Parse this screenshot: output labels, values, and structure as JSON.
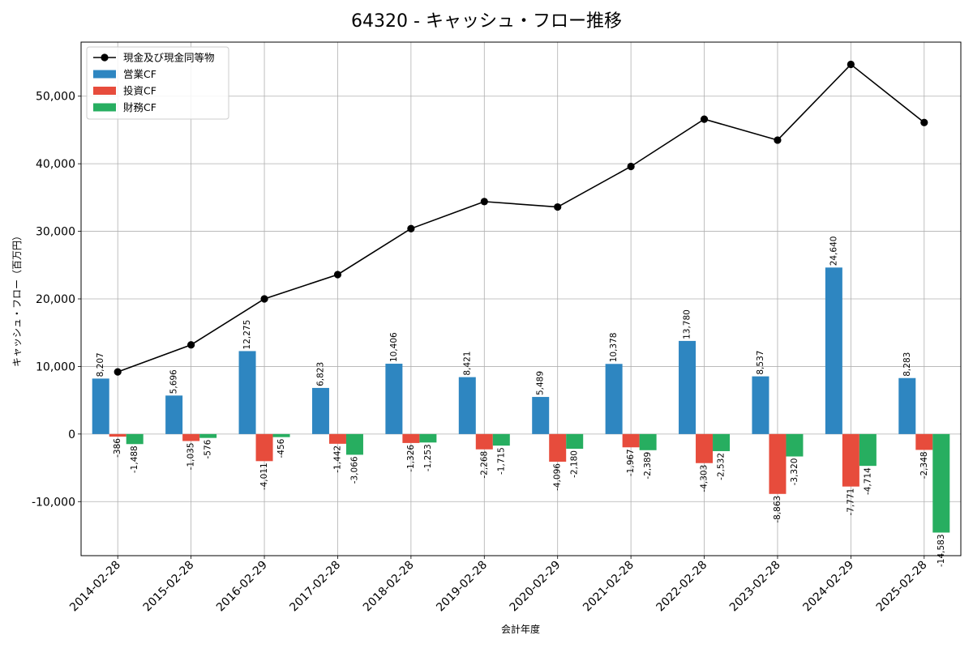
{
  "chart_data": {
    "type": "bar",
    "title": "64320 - キャッシュ・フロー推移",
    "xlabel": "会計年度",
    "ylabel": "キャッシュ・フロー（百万円）",
    "categories": [
      "2014-02-28",
      "2015-02-28",
      "2016-02-29",
      "2017-02-28",
      "2018-02-28",
      "2019-02-28",
      "2020-02-29",
      "2021-02-28",
      "2022-02-28",
      "2023-02-28",
      "2024-02-29",
      "2025-02-28"
    ],
    "ylim": [
      -18000,
      58000
    ],
    "yticks": [
      -10000,
      0,
      10000,
      20000,
      30000,
      40000,
      50000
    ],
    "ytick_labels": [
      "-10,000",
      "0",
      "10,000",
      "20,000",
      "30,000",
      "40,000",
      "50,000"
    ],
    "grid": true,
    "legend_position": "top-left",
    "series": [
      {
        "name": "現金及び現金同等物",
        "type": "line",
        "color": "#000000",
        "values": [
          9200,
          13200,
          20000,
          23600,
          30400,
          34400,
          33600,
          39600,
          46600,
          43500,
          54700,
          46100
        ]
      },
      {
        "name": "営業CF",
        "type": "bar",
        "color": "#2e86c1",
        "values": [
          8207,
          5696,
          12275,
          6823,
          10406,
          8421,
          5489,
          10378,
          13780,
          8537,
          24640,
          8283
        ],
        "labels": [
          "8,207",
          "5,696",
          "12,275",
          "6,823",
          "10,406",
          "8,421",
          "5,489",
          "10,378",
          "13,780",
          "8,537",
          "24,640",
          "8,283"
        ]
      },
      {
        "name": "投資CF",
        "type": "bar",
        "color": "#e74c3c",
        "values": [
          -386,
          -1035,
          -4011,
          -1442,
          -1326,
          -2268,
          -4096,
          -1967,
          -4303,
          -8863,
          -7771,
          -2348
        ],
        "labels": [
          "-386",
          "-1,035",
          "-4,011",
          "-1,442",
          "-1,326",
          "-2,268",
          "-4,096",
          "-1,967",
          "-4,303",
          "-8,863",
          "-7,771",
          "-2,348"
        ]
      },
      {
        "name": "財務CF",
        "type": "bar",
        "color": "#27ae60",
        "values": [
          -1488,
          -576,
          -456,
          -3066,
          -1253,
          -1715,
          -2180,
          -2389,
          -2532,
          -3320,
          -4714,
          -14583
        ],
        "labels": [
          "-1,488",
          "-576",
          "-456",
          "-3,066",
          "-1,253",
          "-1,715",
          "-2,180",
          "-2,389",
          "-2,532",
          "-3,320",
          "-4,714",
          "-14,583"
        ]
      }
    ]
  }
}
